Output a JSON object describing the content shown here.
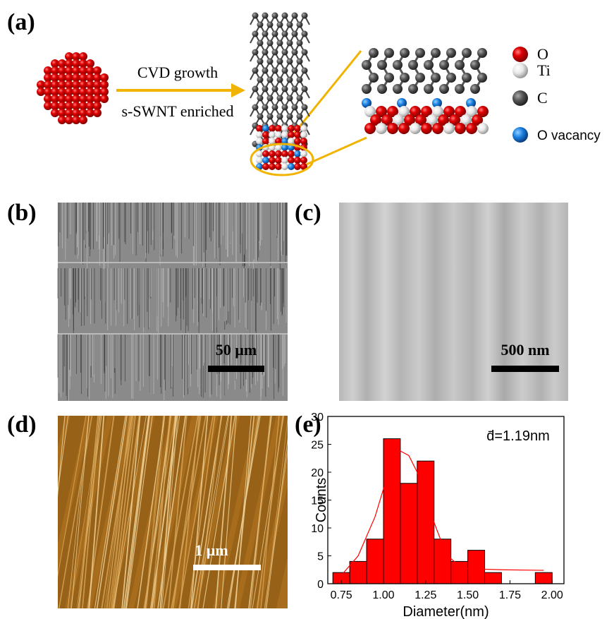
{
  "panel_a": {
    "label": "(a)",
    "arrow_top": "CVD growth",
    "arrow_bottom": "s-SWNT enriched",
    "legend": [
      "O",
      "Ti",
      "C",
      "O vacancy"
    ]
  },
  "panel_b": {
    "label": "(b)",
    "scale_bar": "50 µm"
  },
  "panel_c": {
    "label": "(c)",
    "scale_bar": "500 nm"
  },
  "panel_d": {
    "label": "(d)",
    "scale_bar": "1 µm"
  },
  "panel_e": {
    "label": "(e)",
    "chart_data": {
      "type": "histogram",
      "annotation": "d̄=1.19nm",
      "x_label": "Diameter(nm)",
      "y_label": "Counts",
      "bins": [
        0.7,
        0.8,
        0.9,
        1.0,
        1.1,
        1.2,
        1.3,
        1.4,
        1.5,
        1.6,
        1.7,
        1.8,
        1.9,
        2.0
      ],
      "counts": [
        2,
        4,
        8,
        26,
        18,
        22,
        8,
        4,
        6,
        2,
        0,
        0,
        2
      ],
      "color": "#ff0000",
      "fit": {
        "x": [
          0.75,
          0.85,
          0.95,
          1.0,
          1.05,
          1.1,
          1.15,
          1.2,
          1.25,
          1.3,
          1.35,
          1.4,
          1.45,
          1.5,
          1.7,
          1.95
        ],
        "y": [
          1.5,
          5,
          12,
          17,
          21.5,
          23.8,
          23,
          20,
          15.5,
          11,
          7,
          4.5,
          3.2,
          2.7,
          2.5,
          2.4
        ]
      },
      "xlim": [
        0.67,
        2.07
      ],
      "xticks": [
        {
          "value": 0.75,
          "label": "0.75"
        },
        {
          "value": 1.0,
          "label": "1.00"
        },
        {
          "value": 1.25,
          "label": "1.25"
        },
        {
          "value": 1.5,
          "label": "1.50"
        },
        {
          "value": 1.75,
          "label": "1.75"
        },
        {
          "value": 2.0,
          "label": "2.00"
        }
      ],
      "ylim": [
        0,
        30
      ],
      "yticks": [
        0,
        5,
        10,
        15,
        20,
        25,
        30
      ]
    }
  }
}
